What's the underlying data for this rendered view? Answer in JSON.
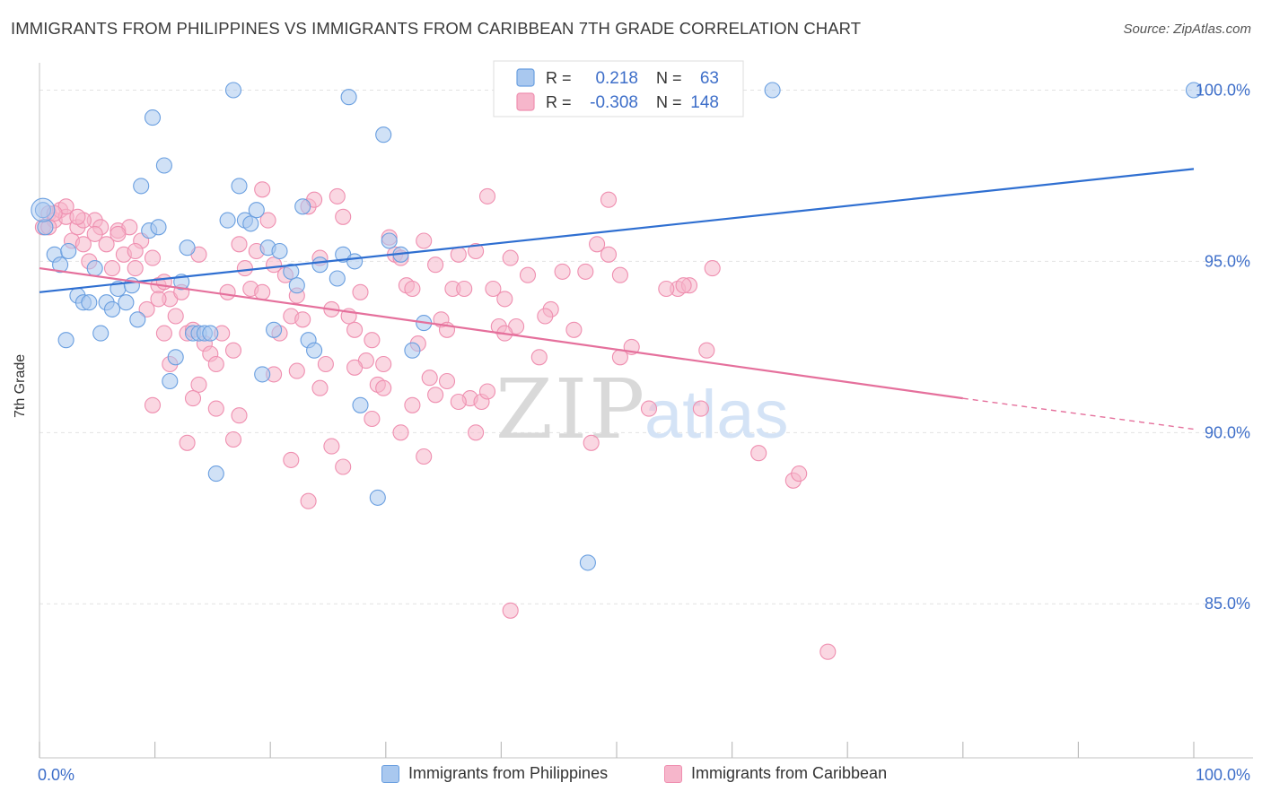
{
  "title": "IMMIGRANTS FROM PHILIPPINES VS IMMIGRANTS FROM CARIBBEAN 7TH GRADE CORRELATION CHART",
  "source": "Source: ZipAtlas.com",
  "watermark": {
    "zip": "ZIP",
    "atlas": "atlas"
  },
  "colors": {
    "blue_fill": "#a9c8ef",
    "blue_stroke": "#6a9fe0",
    "blue_line": "#2f6fd1",
    "pink_fill": "#f6b6cb",
    "pink_stroke": "#ef8fb0",
    "pink_line": "#e5709c",
    "axis_label": "#3d6ec9",
    "grid": "#e2e2e2"
  },
  "legend": {
    "rows": [
      {
        "r_label": "R =",
        "r_value": "0.218",
        "n_label": "N =",
        "n_value": "63"
      },
      {
        "r_label": "R =",
        "r_value": "-0.308",
        "n_label": "N =",
        "n_value": "148"
      }
    ]
  },
  "chart_data": {
    "type": "scatter",
    "title": "IMMIGRANTS FROM PHILIPPINES VS IMMIGRANTS FROM CARIBBEAN 7TH GRADE CORRELATION CHART",
    "xlabel": "",
    "ylabel": "7th Grade",
    "xlim": [
      0,
      100
    ],
    "ylim": [
      80.5,
      100.8
    ],
    "x_tick_labels": [
      "0.0%",
      "100.0%"
    ],
    "y_ticks": [
      85,
      90,
      95,
      100
    ],
    "y_tick_labels": [
      "85.0%",
      "90.0%",
      "95.0%",
      "100.0%"
    ],
    "grid": true,
    "legend_position": "top-center",
    "series": [
      {
        "name": "Immigrants from Philippines",
        "color": "#6a9fe0",
        "r": 0.218,
        "n": 63,
        "trend": {
          "x": [
            0,
            100
          ],
          "y": [
            94.1,
            97.7
          ]
        },
        "points": [
          [
            0.3,
            96.5
          ],
          [
            0.5,
            96.0
          ],
          [
            1.3,
            95.2
          ],
          [
            1.8,
            94.9
          ],
          [
            2.3,
            92.7
          ],
          [
            2.5,
            95.3
          ],
          [
            3.3,
            94.0
          ],
          [
            3.8,
            93.8
          ],
          [
            4.3,
            93.8
          ],
          [
            4.8,
            94.8
          ],
          [
            5.3,
            92.9
          ],
          [
            5.8,
            93.8
          ],
          [
            6.3,
            93.6
          ],
          [
            6.8,
            94.2
          ],
          [
            7.5,
            93.8
          ],
          [
            8.0,
            94.3
          ],
          [
            8.5,
            93.3
          ],
          [
            8.8,
            97.2
          ],
          [
            9.5,
            95.9
          ],
          [
            9.8,
            99.2
          ],
          [
            10.3,
            96.0
          ],
          [
            10.8,
            97.8
          ],
          [
            11.3,
            91.5
          ],
          [
            11.8,
            92.2
          ],
          [
            12.3,
            94.4
          ],
          [
            12.8,
            95.4
          ],
          [
            13.3,
            92.9
          ],
          [
            13.8,
            92.9
          ],
          [
            14.3,
            92.9
          ],
          [
            14.8,
            92.9
          ],
          [
            15.3,
            88.8
          ],
          [
            16.3,
            96.2
          ],
          [
            16.8,
            100.0
          ],
          [
            17.3,
            97.2
          ],
          [
            17.8,
            96.2
          ],
          [
            18.3,
            96.1
          ],
          [
            18.8,
            96.5
          ],
          [
            19.3,
            91.7
          ],
          [
            19.8,
            95.4
          ],
          [
            20.3,
            93.0
          ],
          [
            20.8,
            95.3
          ],
          [
            21.8,
            94.7
          ],
          [
            22.3,
            94.3
          ],
          [
            22.8,
            96.6
          ],
          [
            23.3,
            92.7
          ],
          [
            23.8,
            92.4
          ],
          [
            24.3,
            94.9
          ],
          [
            25.8,
            94.5
          ],
          [
            26.3,
            95.2
          ],
          [
            26.8,
            99.8
          ],
          [
            27.3,
            95.0
          ],
          [
            27.8,
            90.8
          ],
          [
            29.3,
            88.1
          ],
          [
            29.8,
            98.7
          ],
          [
            30.3,
            95.6
          ],
          [
            31.3,
            95.2
          ],
          [
            33.3,
            93.2
          ],
          [
            47.5,
            86.2
          ],
          [
            56.5,
            100.0
          ],
          [
            60.0,
            100.0
          ],
          [
            63.5,
            100.0
          ],
          [
            100.0,
            100.0
          ],
          [
            32.3,
            92.4
          ]
        ]
      },
      {
        "name": "Immigrants from Caribbean",
        "color": "#ef8fb0",
        "r": -0.308,
        "n": 148,
        "trend": {
          "x": [
            0,
            80
          ],
          "y": [
            94.8,
            91.0
          ]
        },
        "trend_dashed": {
          "x": [
            80,
            100
          ],
          "y": [
            91.0,
            90.1
          ]
        },
        "points": [
          [
            0.3,
            96.0
          ],
          [
            0.8,
            96.4
          ],
          [
            1.3,
            96.2
          ],
          [
            1.8,
            96.5
          ],
          [
            2.3,
            96.3
          ],
          [
            2.8,
            95.6
          ],
          [
            3.3,
            96.0
          ],
          [
            3.8,
            95.5
          ],
          [
            4.3,
            95.0
          ],
          [
            4.8,
            96.2
          ],
          [
            5.3,
            96.0
          ],
          [
            5.8,
            95.5
          ],
          [
            6.3,
            94.8
          ],
          [
            6.8,
            95.9
          ],
          [
            7.3,
            95.2
          ],
          [
            7.8,
            96.0
          ],
          [
            8.3,
            94.8
          ],
          [
            8.8,
            95.6
          ],
          [
            9.3,
            93.6
          ],
          [
            9.8,
            95.1
          ],
          [
            10.3,
            94.3
          ],
          [
            10.8,
            94.4
          ],
          [
            11.3,
            93.9
          ],
          [
            11.8,
            93.4
          ],
          [
            12.3,
            94.1
          ],
          [
            12.8,
            92.9
          ],
          [
            13.3,
            93.0
          ],
          [
            13.8,
            95.2
          ],
          [
            14.3,
            92.6
          ],
          [
            14.8,
            92.3
          ],
          [
            15.3,
            92.0
          ],
          [
            15.8,
            92.9
          ],
          [
            16.3,
            94.1
          ],
          [
            16.8,
            92.4
          ],
          [
            17.3,
            95.5
          ],
          [
            17.8,
            94.8
          ],
          [
            18.3,
            94.2
          ],
          [
            18.8,
            95.3
          ],
          [
            19.3,
            97.1
          ],
          [
            19.8,
            96.2
          ],
          [
            20.3,
            94.9
          ],
          [
            20.8,
            92.9
          ],
          [
            21.3,
            94.6
          ],
          [
            21.8,
            93.4
          ],
          [
            22.3,
            94.0
          ],
          [
            22.8,
            93.3
          ],
          [
            23.3,
            96.6
          ],
          [
            23.8,
            96.8
          ],
          [
            24.3,
            95.1
          ],
          [
            24.8,
            92.0
          ],
          [
            25.3,
            93.6
          ],
          [
            25.8,
            96.9
          ],
          [
            26.3,
            96.3
          ],
          [
            26.8,
            93.4
          ],
          [
            27.3,
            93.0
          ],
          [
            27.8,
            94.1
          ],
          [
            28.3,
            92.1
          ],
          [
            28.8,
            92.7
          ],
          [
            29.3,
            91.4
          ],
          [
            29.8,
            92.0
          ],
          [
            30.3,
            95.7
          ],
          [
            30.8,
            95.2
          ],
          [
            31.3,
            95.1
          ],
          [
            31.8,
            94.3
          ],
          [
            32.3,
            94.2
          ],
          [
            32.8,
            92.6
          ],
          [
            33.3,
            95.6
          ],
          [
            33.8,
            91.6
          ],
          [
            34.3,
            94.9
          ],
          [
            34.8,
            93.3
          ],
          [
            35.3,
            93.0
          ],
          [
            35.8,
            94.2
          ],
          [
            36.3,
            95.2
          ],
          [
            36.8,
            94.2
          ],
          [
            37.3,
            91.0
          ],
          [
            37.8,
            95.3
          ],
          [
            38.3,
            90.9
          ],
          [
            38.8,
            96.9
          ],
          [
            39.3,
            94.2
          ],
          [
            39.8,
            93.1
          ],
          [
            40.3,
            93.9
          ],
          [
            40.8,
            95.1
          ],
          [
            41.3,
            93.1
          ],
          [
            42.3,
            94.6
          ],
          [
            43.3,
            92.2
          ],
          [
            44.3,
            93.6
          ],
          [
            45.3,
            94.7
          ],
          [
            46.3,
            93.0
          ],
          [
            47.3,
            94.7
          ],
          [
            48.3,
            95.5
          ],
          [
            49.3,
            95.2
          ],
          [
            50.3,
            92.2
          ],
          [
            51.3,
            92.5
          ],
          [
            55.3,
            94.2
          ],
          [
            56.3,
            94.3
          ],
          [
            57.3,
            90.7
          ],
          [
            57.8,
            92.4
          ],
          [
            58.3,
            94.8
          ],
          [
            62.3,
            89.4
          ],
          [
            65.3,
            88.6
          ],
          [
            65.8,
            88.8
          ],
          [
            68.3,
            83.6
          ],
          [
            3.8,
            96.2
          ],
          [
            4.8,
            95.8
          ],
          [
            6.8,
            95.8
          ],
          [
            8.3,
            95.3
          ],
          [
            9.8,
            90.8
          ],
          [
            10.8,
            92.9
          ],
          [
            11.3,
            92.0
          ],
          [
            12.8,
            89.7
          ],
          [
            13.8,
            91.4
          ],
          [
            15.3,
            90.7
          ],
          [
            16.8,
            89.8
          ],
          [
            17.3,
            90.5
          ],
          [
            20.3,
            91.7
          ],
          [
            21.8,
            89.2
          ],
          [
            23.3,
            88.0
          ],
          [
            24.3,
            91.3
          ],
          [
            25.3,
            89.6
          ],
          [
            26.3,
            89.0
          ],
          [
            27.3,
            91.9
          ],
          [
            28.8,
            90.4
          ],
          [
            29.8,
            91.3
          ],
          [
            31.3,
            90.0
          ],
          [
            32.3,
            90.8
          ],
          [
            33.3,
            89.3
          ],
          [
            34.3,
            91.1
          ],
          [
            35.3,
            91.5
          ],
          [
            37.8,
            90.0
          ],
          [
            38.8,
            91.2
          ],
          [
            40.8,
            84.8
          ],
          [
            43.8,
            93.4
          ],
          [
            47.8,
            89.7
          ],
          [
            52.8,
            90.7
          ],
          [
            49.3,
            96.8
          ],
          [
            50.3,
            94.6
          ],
          [
            54.3,
            94.2
          ],
          [
            55.8,
            94.3
          ],
          [
            40.3,
            92.9
          ],
          [
            36.3,
            90.9
          ],
          [
            22.3,
            91.8
          ],
          [
            19.3,
            94.1
          ],
          [
            13.3,
            91.0
          ],
          [
            10.3,
            93.9
          ],
          [
            3.3,
            96.3
          ],
          [
            2.3,
            96.6
          ],
          [
            1.3,
            96.4
          ],
          [
            0.8,
            96.0
          ]
        ]
      }
    ]
  },
  "bottom_legend": [
    "Immigrants from Philippines",
    "Immigrants from Caribbean"
  ]
}
